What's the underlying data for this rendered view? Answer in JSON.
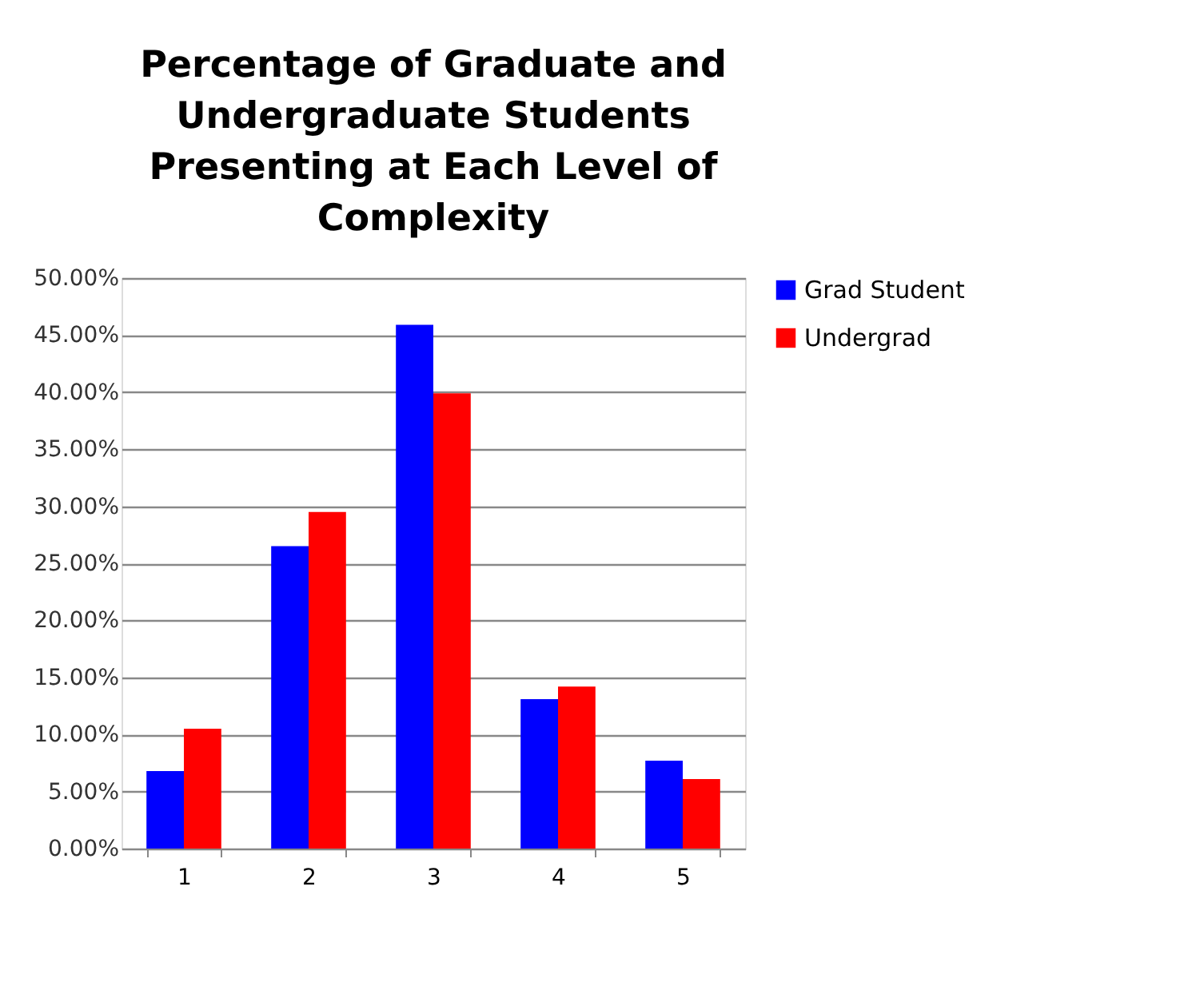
{
  "chart_data": {
    "type": "bar",
    "title": "Percentage of Graduate and Undergraduate Students Presenting at Each Level of Complexity",
    "categories": [
      "1",
      "2",
      "3",
      "4",
      "5"
    ],
    "series": [
      {
        "name": "Grad Student",
        "color": "#0000ff",
        "values": [
          6.8,
          26.5,
          45.9,
          13.1,
          7.7
        ]
      },
      {
        "name": "Undergrad",
        "color": "#ff0000",
        "values": [
          10.5,
          29.5,
          39.9,
          14.2,
          6.1
        ]
      }
    ],
    "ylim": [
      0,
      50
    ],
    "yticks": [
      {
        "value": 0,
        "label": "0.00%"
      },
      {
        "value": 5,
        "label": "5.00%"
      },
      {
        "value": 10,
        "label": "10.00%"
      },
      {
        "value": 15,
        "label": "15.00%"
      },
      {
        "value": 20,
        "label": "20.00%"
      },
      {
        "value": 25,
        "label": "25.00%"
      },
      {
        "value": 30,
        "label": "30.00%"
      },
      {
        "value": 35,
        "label": "35.00%"
      },
      {
        "value": 40,
        "label": "40.00%"
      },
      {
        "value": 45,
        "label": "45.00%"
      },
      {
        "value": 50,
        "label": "50.00%"
      }
    ],
    "grid": "y",
    "legend": "right"
  }
}
